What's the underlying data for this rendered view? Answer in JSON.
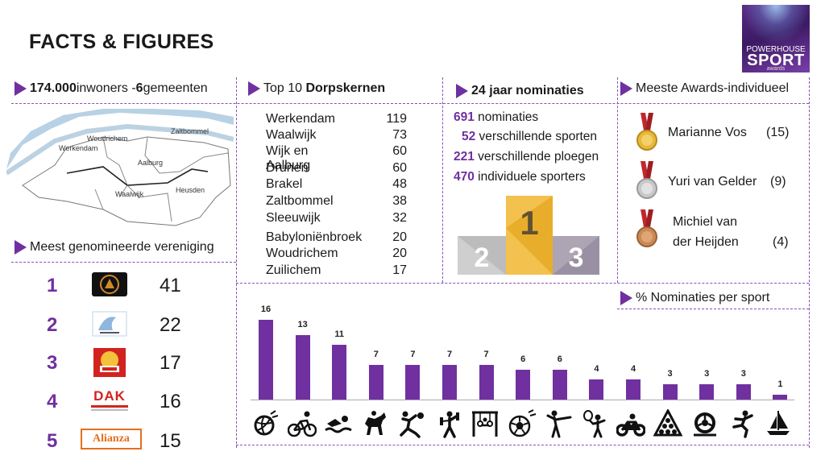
{
  "title": "FACTS & FIGURES",
  "logo": {
    "line1": "POWERHOUSE",
    "line2": "SPORT",
    "line3": "awards"
  },
  "region": {
    "value1": "174.000",
    "text1": " inwoners - ",
    "value2": "6",
    "text2": " gemeenten"
  },
  "map_labels": [
    "Woudrichem",
    "Zaltbommel",
    "Werkendam",
    "Aalburg",
    "Waalwijk",
    "Heusden"
  ],
  "top10": {
    "title_prefix": "Top 10 ",
    "title_bold": "Dorpskernen",
    "rows": [
      {
        "name": "Werkendam",
        "value": "119"
      },
      {
        "name": "Waalwijk",
        "value": "73"
      },
      {
        "name": "Wijk en Aalburg",
        "value": "60"
      },
      {
        "name": "Drunen",
        "value": "60"
      },
      {
        "name": "Brakel",
        "value": "48"
      },
      {
        "name": "Zaltbommel",
        "value": "38"
      },
      {
        "name": "Sleeuwijk",
        "value": "32"
      },
      {
        "name": "Babyloniënbroek",
        "value": "20"
      },
      {
        "name": "Woudrichem",
        "value": "20"
      },
      {
        "name": "Zuilichem",
        "value": "17"
      }
    ]
  },
  "nominaties": {
    "title": "24 jaar nominaties",
    "stats": [
      {
        "value": "691",
        "label": " nominaties"
      },
      {
        "value": "52",
        "label": " verschillende sporten"
      },
      {
        "value": "221",
        "label": " verschillende ploegen"
      },
      {
        "value": "470",
        "label": " individuele sporters"
      }
    ],
    "podium": [
      "1",
      "2",
      "3"
    ]
  },
  "awards": {
    "title": "Meeste Awards-individueel",
    "people": [
      {
        "name": "Marianne Vos",
        "count": "(15)",
        "medal": "gold-medal-icon"
      },
      {
        "name": "Yuri van Gelder",
        "count": "(9)",
        "medal": "silver-medal-icon"
      },
      {
        "name_line1": "Michiel van",
        "name_line2": "der Heijden",
        "count": "(4)",
        "medal": "bronze-medal-icon"
      }
    ]
  },
  "vereniging": {
    "title": "Meest genomineerde vereniging",
    "rows": [
      {
        "rank": "1",
        "value": "41",
        "logo": "club-logo-1"
      },
      {
        "rank": "2",
        "value": "22",
        "logo": "club-logo-2"
      },
      {
        "rank": "3",
        "value": "17",
        "logo": "club-logo-3"
      },
      {
        "rank": "4",
        "value": "16",
        "logo": "club-logo-dak",
        "logo_text": "DAK"
      },
      {
        "rank": "5",
        "value": "15",
        "logo": "club-logo-alianza",
        "logo_text": "Alianza"
      }
    ]
  },
  "chart_title": "% Nominaties per sport",
  "chart_data": {
    "type": "bar",
    "title": "% Nominaties per sport",
    "categories": [
      "volleyball",
      "cycling",
      "swimming",
      "equestrian",
      "handball",
      "weightlifting",
      "gymnastics",
      "football",
      "dance",
      "tennis",
      "motorsport",
      "billiards",
      "karting",
      "martial-arts",
      "sailing"
    ],
    "values": [
      16,
      13,
      11,
      7,
      7,
      7,
      7,
      6,
      6,
      4,
      4,
      3,
      3,
      3,
      1
    ],
    "ylim": [
      0,
      16
    ],
    "grid": false,
    "data_labels": true
  },
  "colors": {
    "accent": "#7030a0",
    "podium_gold": "#f2b83a",
    "podium_silver": "#c8c8c8",
    "podium_bronze": "#a7a0ad"
  }
}
